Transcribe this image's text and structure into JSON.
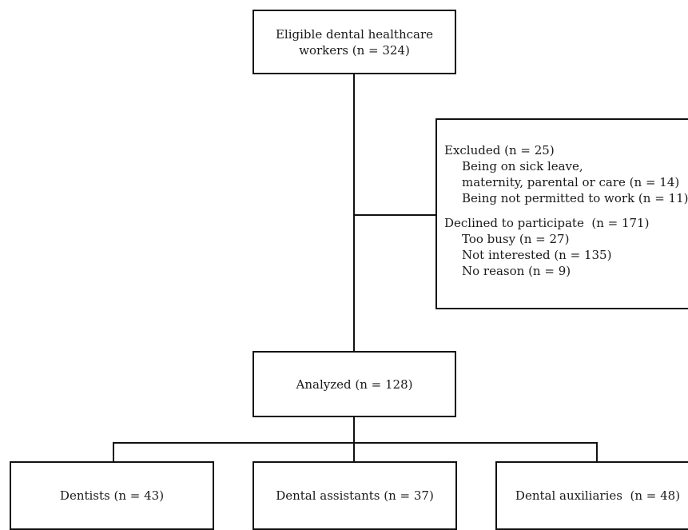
{
  "flowchart": {
    "eligible": {
      "line1": "Eligible dental healthcare",
      "line2": "workers (n = 324)"
    },
    "excluded": {
      "heading": "Excluded (n = 25)",
      "reason1_line1": "Being on sick leave,",
      "reason1_line2": "maternity, parental or care (n = 14)",
      "reason2": "Being not permitted to work (n = 11)"
    },
    "declined": {
      "heading": "Declined to participate  (n = 171)",
      "reasons": [
        "Too busy (n = 27)",
        "Not interested (n = 135)",
        "No reason (n = 9)"
      ]
    },
    "analyzed": "Analyzed (n = 128)",
    "groups": {
      "dentists": "Dentists (n = 43)",
      "assistants": "Dental assistants (n = 37)",
      "auxiliaries": "Dental auxiliaries  (n = 48)"
    }
  }
}
